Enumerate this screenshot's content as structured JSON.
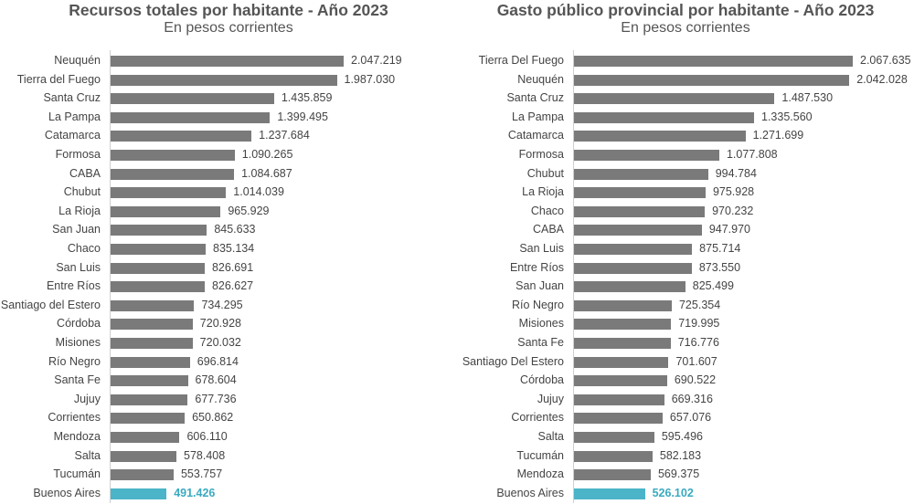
{
  "chart_data": [
    {
      "type": "bar",
      "orientation": "horizontal",
      "title": "Recursos totales por habitante - Año 2023",
      "subtitle": "En pesos corrientes",
      "categories": [
        "Neuquén",
        "Tierra del Fuego",
        "Santa Cruz",
        "La Pampa",
        "Catamarca",
        "Formosa",
        "CABA",
        "Chubut",
        "La Rioja",
        "San Juan",
        "Chaco",
        "San Luis",
        "Entre Ríos",
        "Santiago del Estero",
        "Córdoba",
        "Misiones",
        "Río Negro",
        "Santa Fe",
        "Jujuy",
        "Corrientes",
        "Mendoza",
        "Salta",
        "Tucumán",
        "Buenos Aires"
      ],
      "values": [
        2047219,
        1987030,
        1435859,
        1399495,
        1237684,
        1090265,
        1084687,
        1014039,
        965929,
        845633,
        835134,
        826691,
        826627,
        734295,
        720928,
        720032,
        696814,
        678604,
        677736,
        650862,
        606110,
        578408,
        553757,
        491426
      ],
      "value_labels": [
        "2.047.219",
        "1.987.030",
        "1.435.859",
        "1.399.495",
        "1.237.684",
        "1.090.265",
        "1.084.687",
        "1.014.039",
        "965.929",
        "845.633",
        "835.134",
        "826.691",
        "826.627",
        "734.295",
        "720.928",
        "720.032",
        "696.814",
        "678.604",
        "677.736",
        "650.862",
        "606.110",
        "578.408",
        "553.757",
        "491.426"
      ],
      "highlight": "Buenos Aires",
      "bar_color": "#7a7a7a",
      "highlight_color": "#4bb4c8",
      "xlim": [
        0,
        2047219
      ]
    },
    {
      "type": "bar",
      "orientation": "horizontal",
      "title": "Gasto público provincial por habitante - Año 2023",
      "subtitle": "En pesos corrientes",
      "categories": [
        "Tierra Del Fuego",
        "Neuquén",
        "Santa Cruz",
        "La Pampa",
        "Catamarca",
        "Formosa",
        "Chubut",
        "La Rioja",
        "Chaco",
        "CABA",
        "San Luis",
        "Entre Ríos",
        "San Juan",
        "Río Negro",
        "Misiones",
        "Santa Fe",
        "Santiago Del Estero",
        "Córdoba",
        "Jujuy",
        "Corrientes",
        "Salta",
        "Tucumán",
        "Mendoza",
        "Buenos Aires"
      ],
      "values": [
        2067635,
        2042028,
        1487530,
        1335560,
        1271699,
        1077808,
        994784,
        975928,
        970232,
        947970,
        875714,
        873550,
        825499,
        725354,
        719995,
        716776,
        701607,
        690522,
        669316,
        657076,
        595496,
        582183,
        569375,
        526102
      ],
      "value_labels": [
        "2.067.635",
        "2.042.028",
        "1.487.530",
        "1.335.560",
        "1.271.699",
        "1.077.808",
        "994.784",
        "975.928",
        "970.232",
        "947.970",
        "875.714",
        "873.550",
        "825.499",
        "725.354",
        "719.995",
        "716.776",
        "701.607",
        "690.522",
        "669.316",
        "657.076",
        "595.496",
        "582.183",
        "569.375",
        "526.102"
      ],
      "highlight": "Buenos Aires",
      "bar_color": "#7a7a7a",
      "highlight_color": "#4bb4c8",
      "xlim": [
        0,
        2067635
      ]
    }
  ]
}
